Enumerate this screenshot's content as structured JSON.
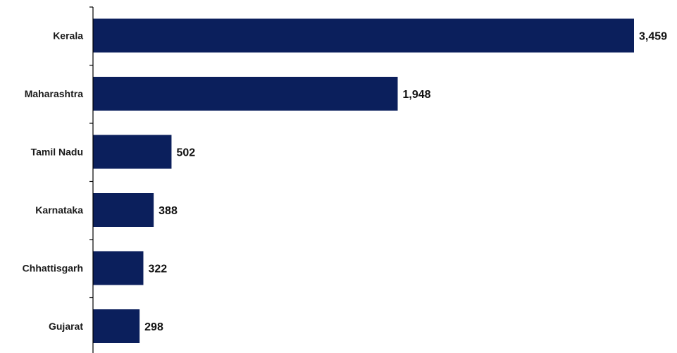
{
  "chart_data": {
    "type": "bar",
    "orientation": "horizontal",
    "title": "",
    "xlabel": "",
    "ylabel": "",
    "categories": [
      "Kerala",
      "Maharashtra",
      "Tamil Nadu",
      "Karnataka",
      "Chhattisgarh",
      "Gujarat"
    ],
    "values": [
      3459,
      1948,
      502,
      388,
      322,
      298
    ],
    "value_labels": [
      "3,459",
      "1,948",
      "502",
      "388",
      "322",
      "298"
    ],
    "xlim": [
      0,
      3459
    ],
    "grid": false,
    "legend": "none",
    "bar_color": "#0b1f5c",
    "axis_color": "#000000"
  }
}
